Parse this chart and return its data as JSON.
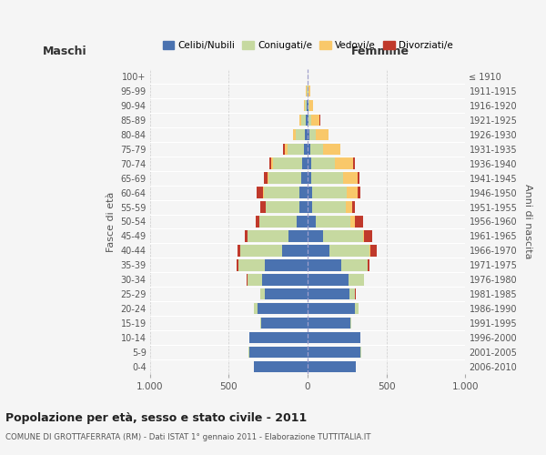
{
  "age_groups": [
    "0-4",
    "5-9",
    "10-14",
    "15-19",
    "20-24",
    "25-29",
    "30-34",
    "35-39",
    "40-44",
    "45-49",
    "50-54",
    "55-59",
    "60-64",
    "65-69",
    "70-74",
    "75-79",
    "80-84",
    "85-89",
    "90-94",
    "95-99",
    "100+"
  ],
  "birth_years": [
    "2006-2010",
    "2001-2005",
    "1996-2000",
    "1991-1995",
    "1986-1990",
    "1981-1985",
    "1976-1980",
    "1971-1975",
    "1966-1970",
    "1961-1965",
    "1956-1960",
    "1951-1955",
    "1946-1950",
    "1941-1945",
    "1936-1940",
    "1931-1935",
    "1926-1930",
    "1921-1925",
    "1916-1920",
    "1911-1915",
    "≤ 1910"
  ],
  "males": {
    "celibi": [
      340,
      370,
      370,
      295,
      320,
      270,
      290,
      270,
      160,
      120,
      70,
      50,
      50,
      40,
      35,
      25,
      15,
      10,
      5,
      2,
      0
    ],
    "coniugati": [
      0,
      5,
      0,
      5,
      20,
      30,
      90,
      170,
      270,
      260,
      235,
      215,
      230,
      210,
      185,
      100,
      60,
      30,
      10,
      5,
      0
    ],
    "vedovi": [
      0,
      0,
      0,
      0,
      0,
      0,
      0,
      0,
      0,
      0,
      3,
      3,
      5,
      5,
      10,
      20,
      20,
      15,
      10,
      5,
      0
    ],
    "divorziati": [
      0,
      0,
      0,
      0,
      0,
      3,
      5,
      10,
      15,
      20,
      20,
      30,
      40,
      25,
      15,
      10,
      0,
      0,
      0,
      0,
      0
    ]
  },
  "females": {
    "nubili": [
      305,
      335,
      335,
      270,
      300,
      265,
      260,
      215,
      140,
      100,
      50,
      30,
      30,
      25,
      20,
      15,
      10,
      5,
      5,
      2,
      0
    ],
    "coniugate": [
      0,
      5,
      0,
      5,
      20,
      35,
      95,
      165,
      255,
      250,
      220,
      210,
      215,
      200,
      150,
      80,
      40,
      20,
      8,
      3,
      0
    ],
    "vedove": [
      0,
      0,
      0,
      0,
      0,
      0,
      0,
      3,
      5,
      10,
      30,
      40,
      70,
      90,
      120,
      110,
      80,
      50,
      20,
      10,
      0
    ],
    "divorziate": [
      0,
      0,
      0,
      0,
      0,
      3,
      5,
      10,
      40,
      50,
      50,
      20,
      20,
      15,
      10,
      5,
      5,
      3,
      0,
      0,
      0
    ]
  },
  "colors": {
    "celibi": "#4a72b0",
    "coniugati": "#c6d9a0",
    "vedovi": "#f9c86a",
    "divorziati": "#c0392b"
  },
  "xlim": 1000,
  "title": "Popolazione per età, sesso e stato civile - 2011",
  "subtitle": "COMUNE DI GROTTAFERRATA (RM) - Dati ISTAT 1° gennaio 2011 - Elaborazione TUTTITALIA.IT",
  "ylabel_left": "Fasce di età",
  "ylabel_right": "Anni di nascita",
  "xlabel_left": "Maschi",
  "xlabel_right": "Femmine",
  "legend_labels": [
    "Celibi/Nubili",
    "Coniugati/e",
    "Vedovi/e",
    "Divorziati/e"
  ],
  "background_color": "#f5f5f5",
  "grid_color": "#cccccc"
}
